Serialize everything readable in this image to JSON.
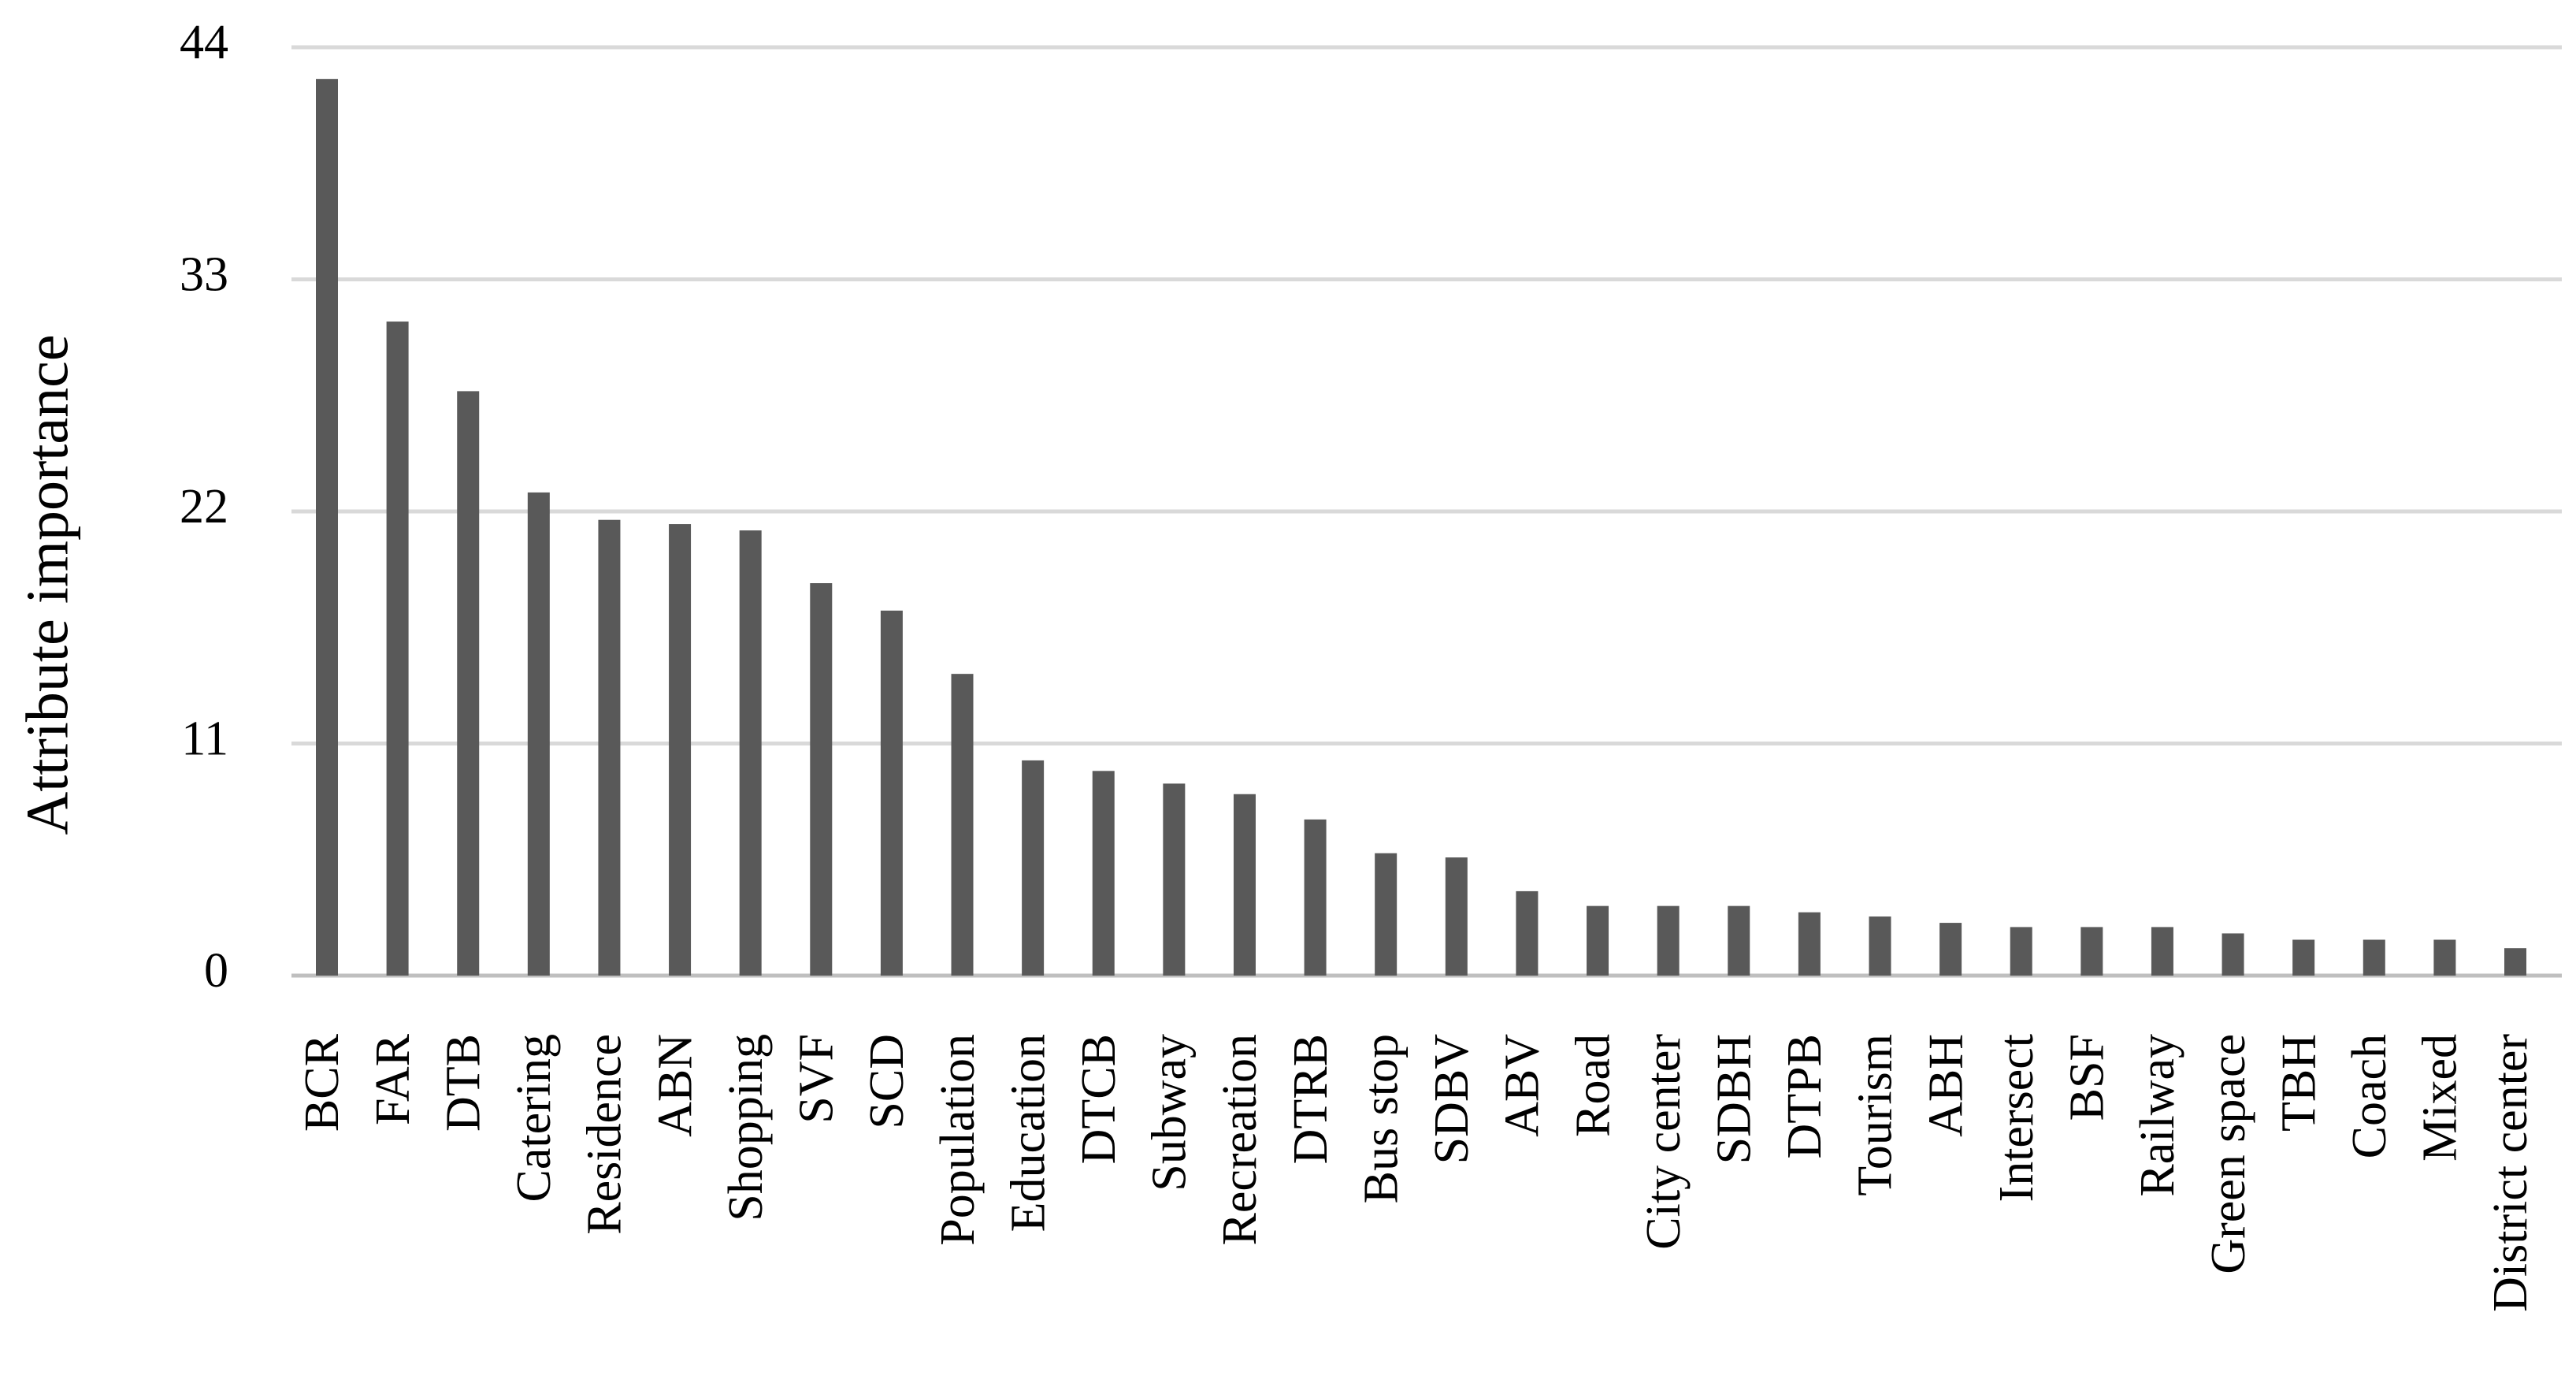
{
  "chart_data": {
    "type": "bar",
    "title": "",
    "xlabel": "",
    "ylabel": "Attribute importance",
    "ylim": [
      0,
      44
    ],
    "yticks": [
      0,
      11,
      22,
      33,
      44
    ],
    "grid": true,
    "legend": "none",
    "bar_color": "#595959",
    "grid_color": "#d9d9d9",
    "categories": [
      "BCR",
      "FAR",
      "DTB",
      "Catering",
      "Residence",
      "ABN",
      "Shopping",
      "SVF",
      "SCD",
      "Population",
      "Education",
      "DTCB",
      "Subway",
      "Recreation",
      "DTRB",
      "Bus stop",
      "SDBV",
      "ABV",
      "Road",
      "City center",
      "SDBH",
      "DTPB",
      "Tourism",
      "ABH",
      "Intersect",
      "BSF",
      "Railway",
      "Green space",
      "TBH",
      "Coach",
      "Mixed",
      "District center"
    ],
    "values": [
      42.5,
      31.0,
      27.7,
      22.9,
      21.6,
      21.4,
      21.1,
      18.6,
      17.3,
      14.3,
      10.2,
      9.7,
      9.1,
      8.6,
      7.4,
      5.8,
      5.6,
      4.0,
      3.3,
      3.3,
      3.3,
      3.0,
      2.8,
      2.5,
      2.3,
      2.3,
      2.3,
      2.0,
      1.7,
      1.7,
      1.7,
      1.3
    ]
  }
}
